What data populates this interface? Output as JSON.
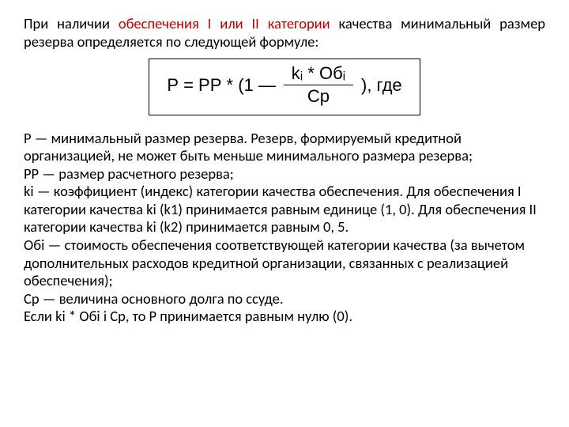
{
  "intro": {
    "pre": "При наличии ",
    "red": "обеспечения I или II категории",
    "post": " качества минимальный размер резерва определяется по следующей формуле:"
  },
  "formula": {
    "left": "Р = РР * (1 —",
    "numerator": "kᵢ * Обᵢ",
    "denom": "Ср",
    "right": "), где"
  },
  "defs": {
    "p1": "Р — минимальный размер резерва. Резерв, формируемый кредитной организацией, не может быть меньше минимального размера резерва;",
    "p2": "РР — размер расчетного резерва;",
    "p3": "ki — коэффициент (индекс) категории качества обеспечения. Для обеспечения I категории качества ki (k1) принимается равным единице (1, 0). Для обеспечения II категории качества ki (k2) принимается равным 0, 5.",
    "p4": "Обi — стоимость обеспечения соответствующей категории качества (за вычетом дополнительных расходов кредитной организации, связанных с реализацией обеспечения);",
    "p5": "Ср — величина основного долга по ссуде.",
    "p6": "Если ki * Обi і Ср, то Р принимается равным нулю (0)."
  },
  "colors": {
    "red": "#c00000",
    "text": "#000000",
    "bg": "#ffffff"
  }
}
